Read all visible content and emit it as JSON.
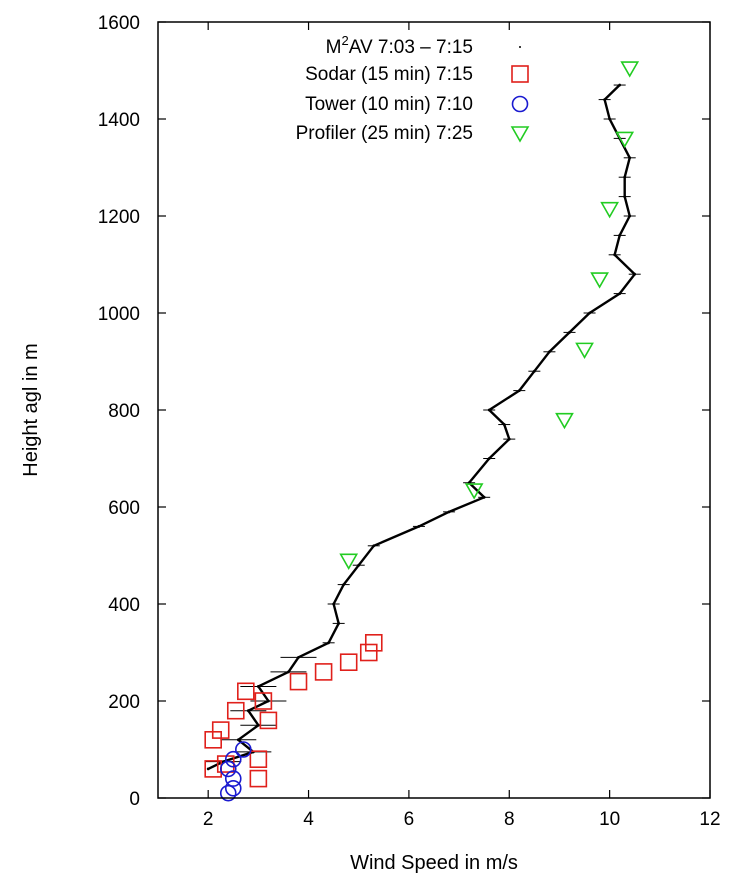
{
  "chart_data": {
    "type": "scatter",
    "xlabel": "Wind Speed in m/s",
    "ylabel": "Height agl in m",
    "xlim": [
      1,
      12
    ],
    "ylim": [
      0,
      1600
    ],
    "xticks": [
      "2",
      "4",
      "6",
      "8",
      "10",
      "12"
    ],
    "yticks": [
      "0",
      "200",
      "400",
      "600",
      "800",
      "1000",
      "1200",
      "1400",
      "1600"
    ],
    "legend_position": "top-left",
    "grid": false,
    "series": [
      {
        "name_main": "M",
        "name_sup": "2",
        "name_rest": "AV 7:03 – 7:15",
        "marker": "dot",
        "color": "#000000",
        "points": [
          [
            2.0,
            60
          ],
          [
            2.3,
            75
          ],
          [
            2.9,
            95
          ],
          [
            2.6,
            120
          ],
          [
            3.0,
            150
          ],
          [
            2.8,
            180
          ],
          [
            3.2,
            200
          ],
          [
            3.0,
            230
          ],
          [
            3.6,
            260
          ],
          [
            3.8,
            290
          ],
          [
            4.4,
            320
          ],
          [
            4.6,
            360
          ],
          [
            4.5,
            400
          ],
          [
            4.7,
            440
          ],
          [
            5.0,
            480
          ],
          [
            5.3,
            520
          ],
          [
            6.2,
            560
          ],
          [
            6.8,
            590
          ],
          [
            7.5,
            620
          ],
          [
            7.2,
            650
          ],
          [
            7.6,
            700
          ],
          [
            8.0,
            740
          ],
          [
            7.9,
            770
          ],
          [
            7.6,
            800
          ],
          [
            8.2,
            840
          ],
          [
            8.5,
            880
          ],
          [
            8.8,
            920
          ],
          [
            9.2,
            960
          ],
          [
            9.6,
            1000
          ],
          [
            10.2,
            1040
          ],
          [
            10.5,
            1080
          ],
          [
            10.1,
            1120
          ],
          [
            10.2,
            1160
          ],
          [
            10.4,
            1200
          ],
          [
            10.3,
            1240
          ],
          [
            10.3,
            1280
          ],
          [
            10.4,
            1320
          ],
          [
            10.2,
            1360
          ],
          [
            10.0,
            1400
          ],
          [
            9.9,
            1440
          ],
          [
            10.2,
            1470
          ]
        ]
      },
      {
        "name": "Sodar (15 min) 7:15",
        "marker": "square",
        "color": "#e0201b",
        "points": [
          [
            2.1,
            60
          ],
          [
            2.35,
            70
          ],
          [
            3.0,
            40
          ],
          [
            3.0,
            80
          ],
          [
            2.1,
            120
          ],
          [
            2.25,
            140
          ],
          [
            2.55,
            180
          ],
          [
            2.75,
            220
          ],
          [
            3.1,
            200
          ],
          [
            3.2,
            160
          ],
          [
            3.8,
            240
          ],
          [
            4.3,
            260
          ],
          [
            4.8,
            280
          ],
          [
            5.2,
            300
          ],
          [
            5.3,
            320
          ]
        ]
      },
      {
        "name": "Tower (10 min) 7:10",
        "marker": "circle",
        "color": "#1a1ad0",
        "points": [
          [
            2.4,
            10
          ],
          [
            2.5,
            20
          ],
          [
            2.5,
            40
          ],
          [
            2.4,
            60
          ],
          [
            2.5,
            80
          ],
          [
            2.7,
            100
          ]
        ]
      },
      {
        "name": "Profiler (25 min) 7:25",
        "marker": "triangle-down",
        "color": "#22cc22",
        "points": [
          [
            4.8,
            490
          ],
          [
            7.3,
            635
          ],
          [
            9.1,
            780
          ],
          [
            9.5,
            925
          ],
          [
            9.8,
            1070
          ],
          [
            10.0,
            1215
          ],
          [
            10.3,
            1360
          ],
          [
            10.4,
            1505
          ]
        ]
      }
    ]
  }
}
